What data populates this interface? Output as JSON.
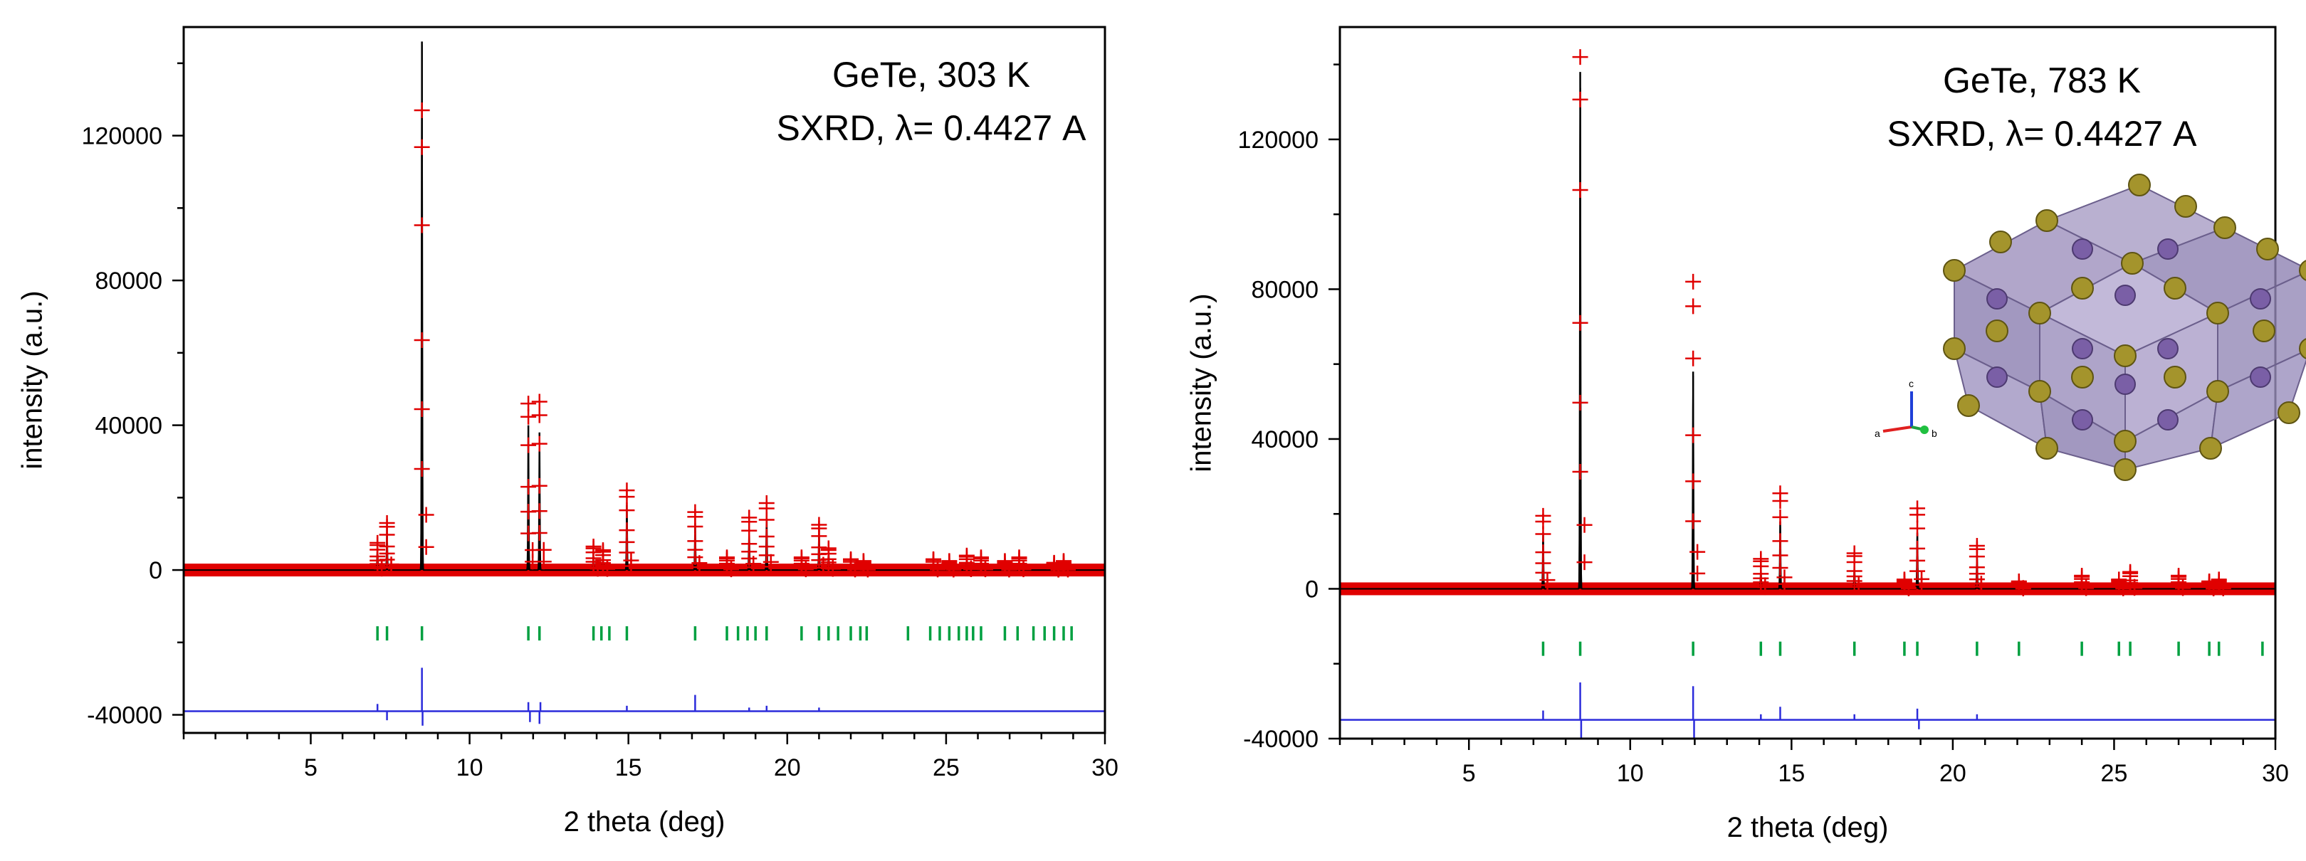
{
  "chart_data": [
    {
      "type": "scatter",
      "panel": "left",
      "title_lines": [
        "GeTe, 303 K",
        "SXRD, λ= 0.4427 A"
      ],
      "xlabel": "2 theta (deg)",
      "ylabel": "intensity (a.u.)",
      "xlim": [
        1,
        30
      ],
      "ylim": [
        -45000,
        150000
      ],
      "xticks": [
        5,
        10,
        15,
        20,
        25,
        30
      ],
      "yticks": [
        -40000,
        0,
        40000,
        80000,
        120000
      ],
      "diff_offset": -39000,
      "series": [
        {
          "name": "Yobs",
          "role": "observed",
          "color": "#e00000"
        },
        {
          "name": "Ycalc",
          "role": "calculated",
          "color": "#000000"
        },
        {
          "name": "Bragg positions",
          "role": "bragg",
          "color": "#00a040",
          "y": -17500,
          "x": [
            7.1,
            7.4,
            8.5,
            11.85,
            12.2,
            13.9,
            14.15,
            14.4,
            14.95,
            17.1,
            18.1,
            18.45,
            18.75,
            19.0,
            19.35,
            20.45,
            21.0,
            21.3,
            21.6,
            22.0,
            22.3,
            22.5,
            23.8,
            24.5,
            24.8,
            25.1,
            25.4,
            25.65,
            25.85,
            26.1,
            26.85,
            27.25,
            27.75,
            28.1,
            28.4,
            28.7,
            28.95
          ]
        },
        {
          "name": "Difference",
          "role": "difference",
          "color": "#2b2bdb"
        }
      ],
      "peaks": [
        {
          "x": 7.1,
          "ycalc": 6000,
          "yobs": 7500
        },
        {
          "x": 7.4,
          "ycalc": 11000,
          "yobs": 13000
        },
        {
          "x": 8.5,
          "ycalc": 146000,
          "yobs": 127000
        },
        {
          "x": 11.85,
          "ycalc": 40000,
          "yobs": 46000
        },
        {
          "x": 12.2,
          "ycalc": 38000,
          "yobs": 46500
        },
        {
          "x": 13.9,
          "ycalc": 5000,
          "yobs": 6500
        },
        {
          "x": 14.2,
          "ycalc": 4000,
          "yobs": 5500
        },
        {
          "x": 14.95,
          "ycalc": 18000,
          "yobs": 22000
        },
        {
          "x": 17.1,
          "ycalc": 13000,
          "yobs": 16000
        },
        {
          "x": 18.1,
          "ycalc": 2500,
          "yobs": 3500
        },
        {
          "x": 18.8,
          "ycalc": 11000,
          "yobs": 14500
        },
        {
          "x": 19.35,
          "ycalc": 16000,
          "yobs": 18500
        },
        {
          "x": 20.45,
          "ycalc": 2500,
          "yobs": 3500
        },
        {
          "x": 21.0,
          "ycalc": 11000,
          "yobs": 12500
        },
        {
          "x": 21.3,
          "ycalc": 5000,
          "yobs": 6000
        },
        {
          "x": 22.0,
          "ycalc": 2000,
          "yobs": 3000
        },
        {
          "x": 22.4,
          "ycalc": 1500,
          "yobs": 2500
        },
        {
          "x": 24.6,
          "ycalc": 2000,
          "yobs": 3000
        },
        {
          "x": 25.1,
          "ycalc": 1500,
          "yobs": 2500
        },
        {
          "x": 25.65,
          "ycalc": 3000,
          "yobs": 4000
        },
        {
          "x": 26.1,
          "ycalc": 2500,
          "yobs": 3500
        },
        {
          "x": 26.85,
          "ycalc": 1500,
          "yobs": 2500
        },
        {
          "x": 27.3,
          "ycalc": 2500,
          "yobs": 3500
        },
        {
          "x": 28.4,
          "ycalc": 1000,
          "yobs": 2000
        },
        {
          "x": 28.7,
          "ycalc": 1500,
          "yobs": 2500
        }
      ],
      "diff_spikes": [
        {
          "x": 7.1,
          "d": 2000
        },
        {
          "x": 7.4,
          "d": -2500
        },
        {
          "x": 8.5,
          "d": 12000
        },
        {
          "x": 8.52,
          "d": -4000
        },
        {
          "x": 11.85,
          "d": 2500
        },
        {
          "x": 11.9,
          "d": -3000
        },
        {
          "x": 12.2,
          "d": -3500
        },
        {
          "x": 12.23,
          "d": 2500
        },
        {
          "x": 14.95,
          "d": 1500
        },
        {
          "x": 17.1,
          "d": 4500
        },
        {
          "x": 18.8,
          "d": 1000
        },
        {
          "x": 19.35,
          "d": 1500
        },
        {
          "x": 21.0,
          "d": 1000
        }
      ]
    },
    {
      "type": "scatter",
      "panel": "right",
      "title_lines": [
        "GeTe, 783 K",
        "SXRD, λ= 0.4427 A"
      ],
      "xlabel": "2 theta (deg)",
      "ylabel": "intensity (a.u.)",
      "xlim": [
        1,
        30
      ],
      "ylim": [
        -40000,
        150000
      ],
      "xticks": [
        5,
        10,
        15,
        20,
        25,
        30
      ],
      "yticks": [
        -40000,
        0,
        40000,
        80000,
        120000
      ],
      "diff_offset": -35000,
      "inset": {
        "description": "crystal structure",
        "axis_labels": [
          "a",
          "b",
          "c"
        ]
      },
      "series": [
        {
          "name": "Yobs",
          "role": "observed",
          "color": "#e00000"
        },
        {
          "name": "Ycalc",
          "role": "calculated",
          "color": "#000000"
        },
        {
          "name": "Bragg positions",
          "role": "bragg",
          "color": "#00a040",
          "y": -16000,
          "x": [
            7.3,
            8.45,
            11.95,
            14.05,
            14.65,
            16.95,
            18.5,
            18.9,
            20.75,
            22.05,
            24.0,
            25.15,
            25.5,
            27.0,
            27.95,
            28.25,
            29.6
          ]
        },
        {
          "name": "Difference",
          "role": "difference",
          "color": "#2b2bdb"
        }
      ],
      "peaks": [
        {
          "x": 7.3,
          "ycalc": 15000,
          "yobs": 19500
        },
        {
          "x": 8.45,
          "ycalc": 138000,
          "yobs": 142000
        },
        {
          "x": 11.95,
          "ycalc": 58000,
          "yobs": 82000
        },
        {
          "x": 14.05,
          "ycalc": 5000,
          "yobs": 8000
        },
        {
          "x": 14.65,
          "ycalc": 18000,
          "yobs": 25500
        },
        {
          "x": 16.95,
          "ycalc": 6000,
          "yobs": 9500
        },
        {
          "x": 18.5,
          "ycalc": 1500,
          "yobs": 2500
        },
        {
          "x": 18.9,
          "ycalc": 15000,
          "yobs": 21500
        },
        {
          "x": 20.75,
          "ycalc": 9000,
          "yobs": 11500
        },
        {
          "x": 22.05,
          "ycalc": 1000,
          "yobs": 2000
        },
        {
          "x": 24.0,
          "ycalc": 2500,
          "yobs": 3500
        },
        {
          "x": 25.15,
          "ycalc": 1500,
          "yobs": 2500
        },
        {
          "x": 25.5,
          "ycalc": 3000,
          "yobs": 4500
        },
        {
          "x": 27.0,
          "ycalc": 2500,
          "yobs": 3500
        },
        {
          "x": 27.95,
          "ycalc": 1000,
          "yobs": 2000
        },
        {
          "x": 28.25,
          "ycalc": 1500,
          "yobs": 2500
        }
      ],
      "diff_spikes": [
        {
          "x": 7.3,
          "d": 2500
        },
        {
          "x": 8.45,
          "d": 10000
        },
        {
          "x": 8.48,
          "d": -10000
        },
        {
          "x": 11.95,
          "d": 9000
        },
        {
          "x": 11.98,
          "d": -8000
        },
        {
          "x": 14.05,
          "d": 1500
        },
        {
          "x": 14.65,
          "d": 3500
        },
        {
          "x": 16.95,
          "d": 1500
        },
        {
          "x": 18.9,
          "d": 3000
        },
        {
          "x": 18.95,
          "d": -2500
        },
        {
          "x": 20.75,
          "d": 1500
        }
      ]
    }
  ]
}
